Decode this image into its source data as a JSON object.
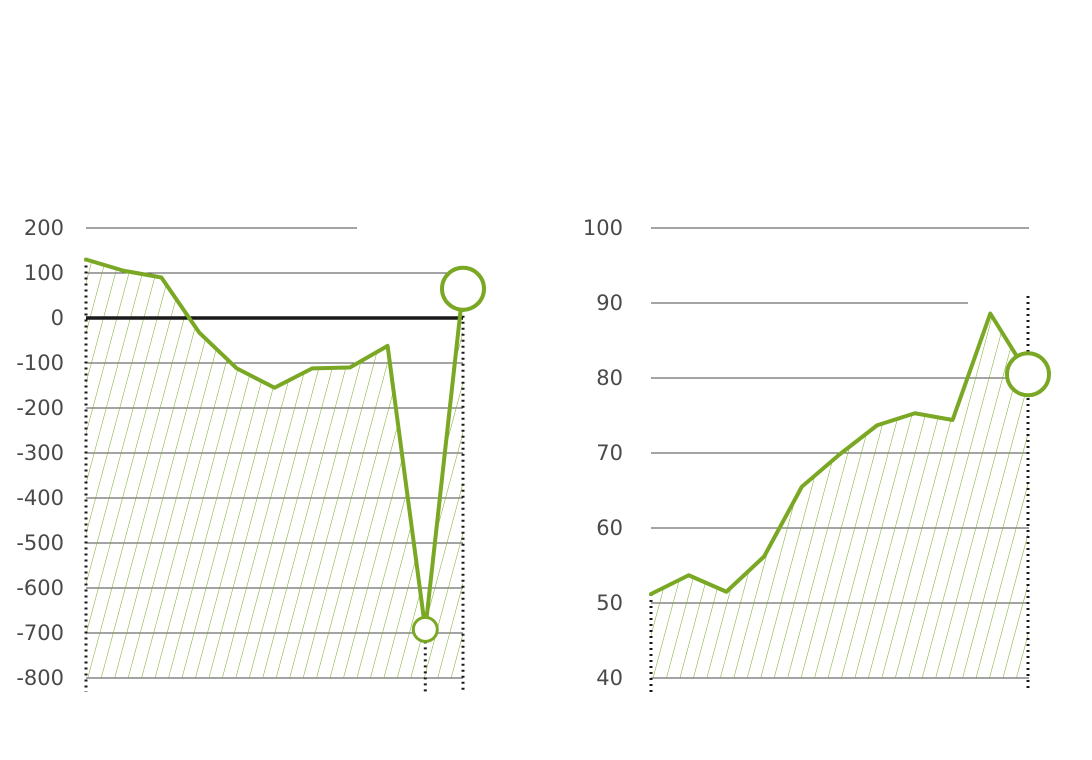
{
  "colors": {
    "series": "#7aa824",
    "hatch": "#7aa824",
    "grid": "#4a4a4a",
    "zero_line": "#1a1a1a",
    "tick_text": "#4a4a4a",
    "marker_fill": "#ffffff"
  },
  "chart_data": [
    {
      "type": "area",
      "ylim": [
        -800,
        200
      ],
      "yticks": [
        200,
        100,
        0,
        -100,
        -200,
        -300,
        -400,
        -500,
        -600,
        -700,
        -800
      ],
      "ytick_labels": [
        "200",
        "100",
        "0",
        "-100",
        "-200",
        "-300",
        "-400",
        "-500",
        "-600",
        "-700",
        "-800"
      ],
      "zero_line": true,
      "x": [
        0,
        1,
        2,
        3,
        4,
        5,
        6,
        7,
        8,
        9,
        10
      ],
      "values": [
        130,
        105,
        90,
        -32,
        -112,
        -155,
        -112,
        -110,
        -62,
        -692,
        65
      ],
      "highlight_points": [
        {
          "index": 9,
          "value": -692,
          "size": "small"
        },
        {
          "index": 10,
          "value": 65,
          "size": "large"
        }
      ],
      "dotted_verticals_at": [
        0,
        9,
        10
      ]
    },
    {
      "type": "area",
      "ylim": [
        40,
        100
      ],
      "yticks": [
        100,
        90,
        80,
        70,
        60,
        50,
        40
      ],
      "ytick_labels": [
        "100",
        "90",
        "80",
        "70",
        "60",
        "50",
        "40"
      ],
      "x": [
        0,
        1,
        2,
        3,
        4,
        5,
        6,
        7,
        8,
        9,
        10
      ],
      "values": [
        51.2,
        53.7,
        51.5,
        56.2,
        65.5,
        69.8,
        73.7,
        75.3,
        74.4,
        88.6,
        80.5
      ],
      "highlight_points": [
        {
          "index": 10,
          "value": 80.5,
          "size": "large"
        }
      ],
      "dotted_verticals_at": [
        0,
        10
      ]
    }
  ]
}
